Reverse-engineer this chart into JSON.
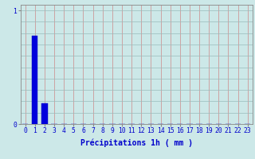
{
  "xlabel": "Précipitations 1h ( mm )",
  "background_color": "#cce8e8",
  "bar_color": "#0000dd",
  "bar_edge_color": "#0000bb",
  "x_values": [
    0,
    1,
    2,
    3,
    4,
    5,
    6,
    7,
    8,
    9,
    10,
    11,
    12,
    13,
    14,
    15,
    16,
    17,
    18,
    19,
    20,
    21,
    22,
    23
  ],
  "y_values": [
    0,
    0.78,
    0.18,
    0,
    0,
    0,
    0,
    0,
    0,
    0,
    0,
    0,
    0,
    0,
    0,
    0,
    0,
    0,
    0,
    0,
    0,
    0,
    0,
    0
  ],
  "ylim": [
    0,
    1.05
  ],
  "xlim": [
    -0.5,
    23.5
  ],
  "yticks": [
    0,
    1
  ],
  "xtick_labels": [
    "0",
    "1",
    "2",
    "3",
    "4",
    "5",
    "6",
    "7",
    "8",
    "9",
    "10",
    "11",
    "12",
    "13",
    "14",
    "15",
    "16",
    "17",
    "18",
    "19",
    "20",
    "21",
    "22",
    "23"
  ],
  "grid_color_v": "#cc8888",
  "grid_color_h": "#99bbbb",
  "xlabel_color": "#0000cc",
  "tick_color": "#0000cc",
  "axis_color": "#888888",
  "xlabel_fontsize": 7.0,
  "tick_fontsize": 5.8,
  "bar_width": 0.6
}
